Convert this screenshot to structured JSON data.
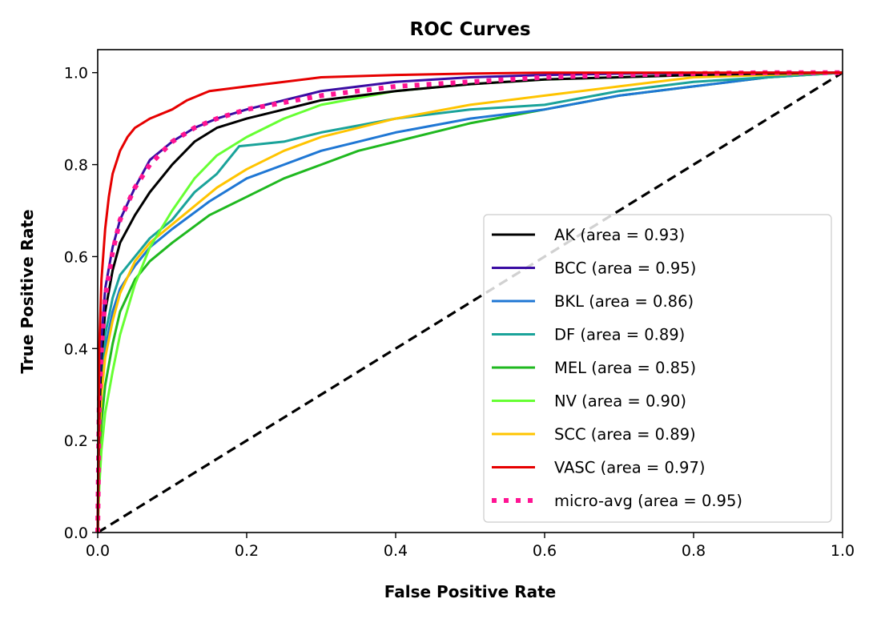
{
  "chart_data": {
    "type": "line",
    "title": "ROC Curves",
    "xlabel": "False Positive Rate",
    "ylabel": "True Positive Rate",
    "xlim": [
      0.0,
      1.0
    ],
    "ylim": [
      0.0,
      1.05
    ],
    "xticks": [
      0.0,
      0.2,
      0.4,
      0.6,
      0.8,
      1.0
    ],
    "yticks": [
      0.0,
      0.2,
      0.4,
      0.6,
      0.8,
      1.0
    ],
    "xtick_labels": [
      "0.0",
      "0.2",
      "0.4",
      "0.6",
      "0.8",
      "1.0"
    ],
    "ytick_labels": [
      "0.0",
      "0.2",
      "0.4",
      "0.6",
      "0.8",
      "1.0"
    ],
    "legend_position": "lower-right",
    "series": [
      {
        "name": "AK",
        "label": "AK (area = 0.93)",
        "color": "#000000",
        "style": "solid",
        "x": [
          0,
          0.002,
          0.005,
          0.01,
          0.02,
          0.03,
          0.05,
          0.07,
          0.1,
          0.13,
          0.16,
          0.2,
          0.25,
          0.3,
          0.4,
          0.5,
          0.6,
          0.7,
          0.8,
          0.9,
          1.0
        ],
        "y": [
          0,
          0.25,
          0.38,
          0.48,
          0.57,
          0.63,
          0.69,
          0.74,
          0.8,
          0.85,
          0.88,
          0.9,
          0.92,
          0.94,
          0.96,
          0.975,
          0.985,
          0.99,
          0.995,
          0.998,
          1.0
        ]
      },
      {
        "name": "BCC",
        "label": "BCC (area = 0.95)",
        "color": "#3a0ca3",
        "style": "solid",
        "x": [
          0,
          0.002,
          0.005,
          0.01,
          0.02,
          0.03,
          0.05,
          0.07,
          0.1,
          0.13,
          0.16,
          0.2,
          0.25,
          0.3,
          0.4,
          0.5,
          0.6,
          0.7,
          0.8,
          0.9,
          1.0
        ],
        "y": [
          0,
          0.3,
          0.42,
          0.53,
          0.62,
          0.68,
          0.75,
          0.81,
          0.85,
          0.88,
          0.9,
          0.92,
          0.94,
          0.96,
          0.98,
          0.99,
          0.995,
          0.998,
          0.999,
          1.0,
          1.0
        ]
      },
      {
        "name": "BKL",
        "label": "BKL (area = 0.86)",
        "color": "#1f77d4",
        "style": "solid",
        "x": [
          0,
          0.002,
          0.005,
          0.01,
          0.02,
          0.03,
          0.05,
          0.07,
          0.1,
          0.15,
          0.2,
          0.25,
          0.3,
          0.35,
          0.4,
          0.5,
          0.6,
          0.7,
          0.8,
          0.9,
          1.0
        ],
        "y": [
          0,
          0.22,
          0.32,
          0.4,
          0.48,
          0.53,
          0.58,
          0.62,
          0.66,
          0.72,
          0.77,
          0.8,
          0.83,
          0.85,
          0.87,
          0.9,
          0.92,
          0.95,
          0.97,
          0.99,
          1.0
        ]
      },
      {
        "name": "DF",
        "label": "DF (area = 0.89)",
        "color": "#1aa39a",
        "style": "solid",
        "x": [
          0,
          0.002,
          0.005,
          0.01,
          0.02,
          0.03,
          0.05,
          0.07,
          0.1,
          0.13,
          0.16,
          0.19,
          0.25,
          0.3,
          0.4,
          0.5,
          0.6,
          0.7,
          0.8,
          0.9,
          1.0
        ],
        "y": [
          0,
          0.24,
          0.34,
          0.43,
          0.51,
          0.56,
          0.6,
          0.64,
          0.68,
          0.74,
          0.78,
          0.84,
          0.85,
          0.87,
          0.9,
          0.92,
          0.93,
          0.96,
          0.98,
          0.99,
          1.0
        ]
      },
      {
        "name": "MEL",
        "label": "MEL (area = 0.85)",
        "color": "#1fb81f",
        "style": "solid",
        "x": [
          0,
          0.002,
          0.005,
          0.01,
          0.02,
          0.03,
          0.05,
          0.07,
          0.1,
          0.15,
          0.2,
          0.25,
          0.3,
          0.35,
          0.4,
          0.5,
          0.6,
          0.7,
          0.8,
          0.9,
          1.0
        ],
        "y": [
          0,
          0.15,
          0.24,
          0.32,
          0.41,
          0.48,
          0.55,
          0.59,
          0.63,
          0.69,
          0.73,
          0.77,
          0.8,
          0.83,
          0.85,
          0.89,
          0.92,
          0.95,
          0.97,
          0.99,
          1.0
        ]
      },
      {
        "name": "NV",
        "label": "NV (area = 0.90)",
        "color": "#66ff33",
        "style": "solid",
        "x": [
          0,
          0.002,
          0.005,
          0.01,
          0.02,
          0.03,
          0.05,
          0.07,
          0.1,
          0.13,
          0.16,
          0.2,
          0.25,
          0.3,
          0.4,
          0.5,
          0.6,
          0.7,
          0.8,
          0.9,
          1.0
        ],
        "y": [
          0,
          0.1,
          0.18,
          0.26,
          0.35,
          0.43,
          0.54,
          0.62,
          0.7,
          0.77,
          0.82,
          0.86,
          0.9,
          0.93,
          0.96,
          0.975,
          0.985,
          0.99,
          0.995,
          0.998,
          1.0
        ]
      },
      {
        "name": "SCC",
        "label": "SCC (area = 0.89)",
        "color": "#ffc400",
        "style": "solid",
        "x": [
          0,
          0.002,
          0.005,
          0.01,
          0.02,
          0.03,
          0.05,
          0.07,
          0.1,
          0.13,
          0.16,
          0.2,
          0.25,
          0.3,
          0.35,
          0.4,
          0.5,
          0.6,
          0.7,
          0.8,
          1.0
        ],
        "y": [
          0,
          0.2,
          0.3,
          0.38,
          0.46,
          0.52,
          0.59,
          0.63,
          0.67,
          0.71,
          0.75,
          0.79,
          0.83,
          0.86,
          0.88,
          0.9,
          0.93,
          0.95,
          0.97,
          0.99,
          1.0
        ]
      },
      {
        "name": "VASC",
        "label": "VASC (area = 0.97)",
        "color": "#e60000",
        "style": "solid",
        "x": [
          0,
          0.002,
          0.005,
          0.01,
          0.015,
          0.02,
          0.03,
          0.04,
          0.05,
          0.07,
          0.1,
          0.12,
          0.15,
          0.2,
          0.25,
          0.3,
          0.4,
          0.5,
          0.6,
          0.8,
          1.0
        ],
        "y": [
          0,
          0.4,
          0.55,
          0.66,
          0.73,
          0.78,
          0.83,
          0.86,
          0.88,
          0.9,
          0.92,
          0.94,
          0.96,
          0.97,
          0.98,
          0.99,
          0.995,
          0.998,
          1.0,
          1.0,
          1.0
        ]
      },
      {
        "name": "micro-avg",
        "label": "micro-avg (area = 0.95)",
        "color": "#ff1493",
        "style": "dotted",
        "x": [
          0,
          0.002,
          0.005,
          0.01,
          0.02,
          0.03,
          0.05,
          0.07,
          0.1,
          0.13,
          0.16,
          0.2,
          0.25,
          0.3,
          0.4,
          0.5,
          0.6,
          0.7,
          0.8,
          0.9,
          1.0
        ],
        "y": [
          0,
          0.28,
          0.4,
          0.51,
          0.61,
          0.68,
          0.75,
          0.8,
          0.85,
          0.88,
          0.9,
          0.92,
          0.935,
          0.95,
          0.97,
          0.98,
          0.99,
          0.995,
          0.998,
          1.0,
          1.0
        ]
      },
      {
        "name": "chance",
        "label": "",
        "color": "#000000",
        "style": "dashed",
        "x": [
          0,
          1
        ],
        "y": [
          0,
          1
        ]
      }
    ]
  }
}
